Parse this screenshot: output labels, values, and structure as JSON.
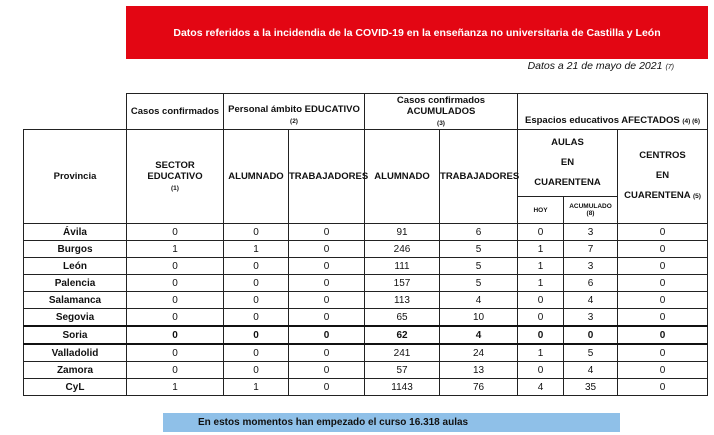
{
  "title": "Datos referidos a la incidendia de la COVID-19 en la enseñanza no universitaria de Castilla y León",
  "date": {
    "text": "Datos a 21 de mayo de 2021",
    "note": "(7)"
  },
  "header": {
    "group1": "Casos confirmados",
    "group2": {
      "label": "Personal ámbito EDUCATIVO",
      "note": "(2)"
    },
    "group3": {
      "label": "Casos confirmados ACUMULADOS",
      "note": "(3)"
    },
    "group4": {
      "label": "Espacios educativos AFECTADOS",
      "note": "(4) (6)"
    },
    "provincia": "Provincia",
    "sector": {
      "label": "SECTOR EDUCATIVO",
      "note": "(1)"
    },
    "alumnado": "ALUMNADO",
    "trabajadores": "TRABAJADORES",
    "alumnado_acum": "ALUMNADO",
    "trabajadores_acum": "TRABAJADORES",
    "aulas": [
      "AULAS",
      "EN",
      "CUARENTENA"
    ],
    "centros": {
      "lines": [
        "CENTROS",
        "EN",
        "CUARENTENA"
      ],
      "note": "(5)"
    },
    "hoy": "HOY",
    "acumulado": {
      "label": "ACUMULADO",
      "note": "(8)"
    }
  },
  "rows": [
    [
      "Ávila",
      "0",
      "0",
      "0",
      "91",
      "6",
      "0",
      "3",
      "0"
    ],
    [
      "Burgos",
      "1",
      "1",
      "0",
      "246",
      "5",
      "1",
      "7",
      "0"
    ],
    [
      "León",
      "0",
      "0",
      "0",
      "111",
      "5",
      "1",
      "3",
      "0"
    ],
    [
      "Palencia",
      "0",
      "0",
      "0",
      "157",
      "5",
      "1",
      "6",
      "0"
    ],
    [
      "Salamanca",
      "0",
      "0",
      "0",
      "113",
      "4",
      "0",
      "4",
      "0"
    ],
    [
      "Segovia",
      "0",
      "0",
      "0",
      "65",
      "10",
      "0",
      "3",
      "0"
    ],
    [
      "Soria",
      "0",
      "0",
      "0",
      "62",
      "4",
      "0",
      "0",
      "0"
    ],
    [
      "Valladolid",
      "0",
      "0",
      "0",
      "241",
      "24",
      "1",
      "5",
      "0"
    ],
    [
      "Zamora",
      "0",
      "0",
      "0",
      "57",
      "13",
      "0",
      "4",
      "0"
    ],
    [
      "CyL",
      "1",
      "1",
      "0",
      "1143",
      "76",
      "4",
      "35",
      "0"
    ]
  ],
  "highlighted_row": "Soria",
  "footer": "En estos momentos han empezado el curso 16.318 aulas",
  "colors": {
    "banner": "#e30613",
    "footer": "#8fc0e8"
  }
}
